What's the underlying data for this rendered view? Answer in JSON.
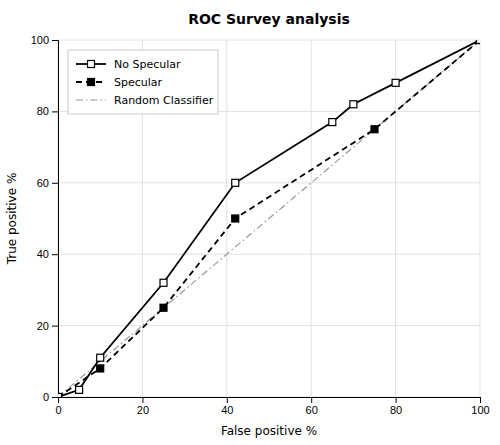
{
  "chart_data": {
    "type": "line",
    "title": "ROC Survey analysis",
    "xlabel": "False positive %",
    "ylabel": "True positive %",
    "xlim": [
      0,
      100
    ],
    "ylim": [
      0,
      100
    ],
    "xticks": [
      0,
      20,
      40,
      60,
      80,
      100
    ],
    "yticks": [
      0,
      20,
      40,
      60,
      80,
      100
    ],
    "grid": true,
    "legend": "upper left",
    "series": [
      {
        "name": "No Specular",
        "color": "#000000",
        "marker": "square-open",
        "line_style": "solid",
        "x": [
          0,
          5,
          10,
          25,
          42,
          65,
          70,
          80,
          100
        ],
        "values": [
          0,
          2,
          11,
          32,
          60,
          77,
          82,
          88,
          100
        ]
      },
      {
        "name": "Specular",
        "color": "#000000",
        "marker": "square",
        "line_style": "dashed",
        "x": [
          0,
          10,
          25,
          42,
          75,
          100
        ],
        "values": [
          0,
          8,
          25,
          50,
          75,
          100
        ]
      },
      {
        "name": "Random Classifier",
        "color": "#999999",
        "marker": "none",
        "line_style": "dashdot",
        "x": [
          0,
          100
        ],
        "values": [
          0,
          100
        ]
      }
    ]
  }
}
